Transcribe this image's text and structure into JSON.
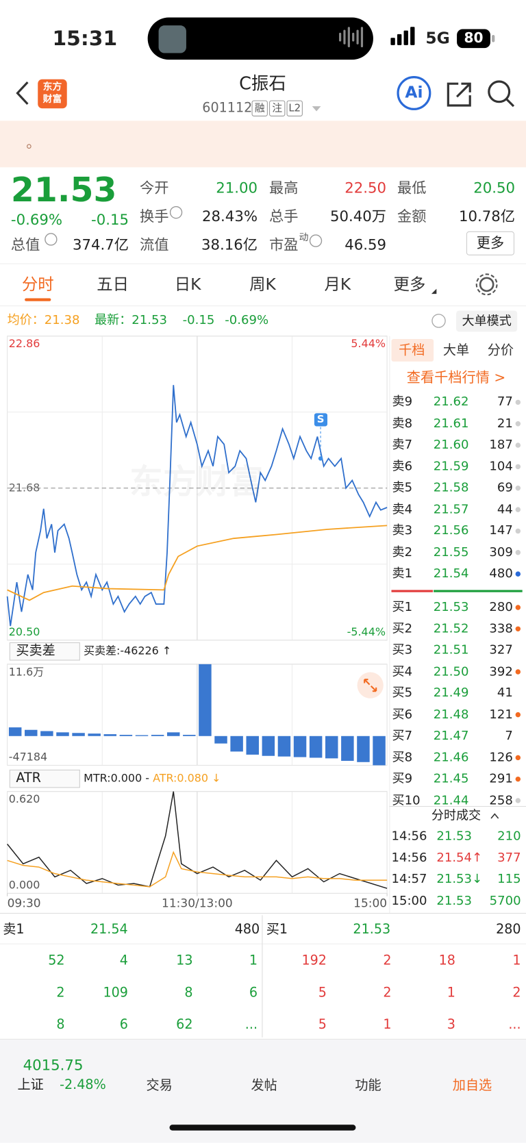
{
  "status_bar": {
    "time": "15:31",
    "network": "5G",
    "battery": "80"
  },
  "header": {
    "logo": [
      "东方",
      "财富"
    ],
    "title": "C振石",
    "code": "601112",
    "tags": [
      "融",
      "注",
      "L2"
    ],
    "ai": "Ai"
  },
  "banner": {
    "text": "。"
  },
  "quote": {
    "price": "21.53",
    "pct": "-0.69%",
    "chg": "-0.15",
    "cap_label": "总值",
    "cap": "374.7亿",
    "rows": [
      [
        {
          "label": "今开",
          "value": "21.00",
          "color": "#1a9e3a"
        },
        {
          "label": "最高",
          "value": "22.50",
          "color": "#e23b3b"
        },
        {
          "label": "最低",
          "value": "20.50",
          "color": "#1a9e3a"
        }
      ],
      [
        {
          "label": "换手",
          "value": "28.43%",
          "info": true
        },
        {
          "label": "总手",
          "value": "50.40万"
        },
        {
          "label": "金额",
          "value": "10.78亿"
        }
      ],
      [
        {
          "label": "流值",
          "value": "38.16亿"
        },
        {
          "label": "市盈",
          "sup": "动",
          "value": "46.59",
          "info": true
        }
      ]
    ],
    "more": "更多"
  },
  "tabs": {
    "items": [
      "分时",
      "五日",
      "日K",
      "周K",
      "月K",
      "更多"
    ],
    "active": 0
  },
  "info_bar": {
    "avg": "均价：21.38",
    "last": "最新：21.53",
    "chg": "-0.15",
    "pct": "-0.69%",
    "big_order": "大单模式"
  },
  "chart_data": [
    {
      "type": "line",
      "watermark": "东方财富",
      "xlim": [
        0,
        240
      ],
      "ylim": [
        20.5,
        22.86
      ],
      "yticks": [
        22.86,
        21.68,
        {
          "value": 20.5,
          "label": "20.50"
        }
      ],
      "y2lim": [
        -5.44,
        5.44
      ],
      "y2ticks": [
        {
          "value": 5.44,
          "label": "5.44%"
        },
        {
          "value": -5.44,
          "label": "-5.44%"
        }
      ],
      "series": [
        {
          "color": "#2f6fcc",
          "x": [
            0,
            2,
            6,
            9,
            13,
            16,
            18,
            21,
            23,
            25,
            28,
            30,
            32,
            36,
            39,
            41,
            44,
            47,
            50,
            53,
            56,
            60,
            63,
            67,
            70,
            74,
            77,
            81,
            84,
            87,
            91,
            94,
            99,
            101,
            103,
            105,
            107,
            109,
            113,
            116,
            120,
            123,
            127,
            130,
            133,
            137,
            140,
            144,
            147,
            151,
            155,
            157,
            160,
            163,
            167,
            170,
            174,
            178,
            181,
            185,
            189,
            192,
            196,
            200,
            203,
            207,
            211,
            214,
            218,
            222,
            225,
            229,
            233,
            236,
            240
          ],
          "values": [
            20.84,
            20.61,
            20.95,
            20.72,
            21.01,
            20.89,
            21.18,
            21.35,
            21.52,
            21.29,
            21.4,
            21.18,
            21.35,
            21.4,
            21.29,
            21.18,
            21.01,
            20.89,
            20.95,
            20.84,
            21.01,
            20.89,
            20.95,
            20.78,
            20.84,
            20.72,
            20.78,
            20.84,
            20.78,
            20.84,
            20.87,
            20.78,
            20.78,
            21.18,
            21.8,
            22.48,
            22.19,
            22.25,
            22.08,
            22.19,
            22.02,
            21.85,
            21.97,
            21.85,
            22.08,
            22.02,
            21.8,
            21.85,
            21.97,
            21.91,
            21.68,
            21.57,
            21.8,
            21.74,
            21.85,
            21.97,
            22.14,
            22.02,
            21.91,
            22.08,
            21.97,
            21.91,
            22.08,
            21.85,
            21.91,
            21.85,
            21.91,
            21.68,
            21.74,
            21.63,
            21.57,
            21.46,
            21.57,
            21.51,
            21.53
          ]
        },
        {
          "color": "#f5a020",
          "x": [
            0,
            14,
            23,
            41,
            64,
            99,
            102,
            108,
            120,
            143,
            170,
            202,
            240
          ],
          "values": [
            20.89,
            20.81,
            20.87,
            20.92,
            20.9,
            20.89,
            21.01,
            21.15,
            21.23,
            21.29,
            21.32,
            21.36,
            21.39
          ]
        }
      ],
      "annotations": [
        {
          "label": "S",
          "x": 198,
          "y": 21.91
        }
      ]
    },
    {
      "type": "bar",
      "selector": "买卖差",
      "label": "买卖差:-46226 ↑",
      "color": "#3a78d0",
      "xlim": [
        0,
        240
      ],
      "x": [
        0,
        10,
        20,
        30,
        40,
        50,
        60,
        70,
        80,
        90,
        100,
        110,
        120,
        130,
        140,
        150,
        160,
        170,
        180,
        190,
        200,
        210,
        220,
        230
      ],
      "values": [
        14000,
        10000,
        8000,
        6000,
        5000,
        4000,
        3000,
        2000,
        1500,
        2000,
        6000,
        2000,
        116000,
        -12000,
        -25000,
        -30000,
        -32000,
        -33000,
        -34000,
        -35000,
        -36000,
        -40000,
        -42000,
        -47184
      ],
      "ylim": [
        -47184,
        116000
      ],
      "yticks": [
        {
          "value": 116000,
          "label": "11.6万"
        },
        -47184
      ]
    },
    {
      "type": "line",
      "selector": "ATR",
      "mtr_label": "MTR:0.000 -",
      "atr_label": "ATR:0.080 ↓",
      "xlim": [
        0,
        240
      ],
      "xticks": [
        {
          "value": 0,
          "label": "09:30"
        },
        {
          "value": 120,
          "label": "11:30/13:00"
        },
        {
          "value": 240,
          "label": "15:00"
        }
      ],
      "ylim": [
        0,
        0.62
      ],
      "yticks": [
        {
          "value": 0.62,
          "label": "0.620"
        },
        {
          "value": 0,
          "label": "0.000"
        }
      ],
      "series": [
        {
          "color": "#222222",
          "x": [
            0,
            10,
            20,
            30,
            40,
            50,
            60,
            70,
            80,
            90,
            100,
            105,
            110,
            120,
            130,
            140,
            150,
            160,
            170,
            180,
            190,
            200,
            210,
            220,
            240
          ],
          "values": [
            0.3,
            0.18,
            0.22,
            0.1,
            0.14,
            0.06,
            0.09,
            0.05,
            0.06,
            0.04,
            0.35,
            0.62,
            0.18,
            0.12,
            0.16,
            0.1,
            0.14,
            0.08,
            0.2,
            0.1,
            0.15,
            0.07,
            0.12,
            0.09,
            0.03
          ]
        },
        {
          "color": "#f5a020",
          "x": [
            0,
            10,
            20,
            30,
            40,
            50,
            60,
            70,
            80,
            90,
            100,
            105,
            110,
            120,
            130,
            140,
            150,
            160,
            170,
            180,
            190,
            200,
            210,
            220,
            240
          ],
          "values": [
            0.2,
            0.17,
            0.16,
            0.12,
            0.1,
            0.08,
            0.07,
            0.06,
            0.05,
            0.04,
            0.1,
            0.25,
            0.15,
            0.13,
            0.12,
            0.11,
            0.1,
            0.1,
            0.1,
            0.09,
            0.1,
            0.09,
            0.09,
            0.08,
            0.08
          ]
        }
      ]
    }
  ],
  "order_book": {
    "tabs": [
      "千档",
      "大单",
      "分价"
    ],
    "active": 0,
    "link": "查看千档行情 >",
    "asks": [
      {
        "label": "卖9",
        "price": "21.62",
        "volume": "77",
        "dot": "#cfcfcf"
      },
      {
        "label": "卖8",
        "price": "21.61",
        "volume": "21",
        "dot": "#cfcfcf"
      },
      {
        "label": "卖7",
        "price": "21.60",
        "volume": "187",
        "dot": "#cfcfcf"
      },
      {
        "label": "卖6",
        "price": "21.59",
        "volume": "104",
        "dot": "#cfcfcf"
      },
      {
        "label": "卖5",
        "price": "21.58",
        "volume": "69",
        "dot": "#cfcfcf"
      },
      {
        "label": "卖4",
        "price": "21.57",
        "volume": "44",
        "dot": "#cfcfcf"
      },
      {
        "label": "卖3",
        "price": "21.56",
        "volume": "147",
        "dot": "#cfcfcf"
      },
      {
        "label": "卖2",
        "price": "21.55",
        "volume": "309",
        "dot": "#cfcfcf"
      },
      {
        "label": "卖1",
        "price": "21.54",
        "volume": "480",
        "dot": "#2a6ad8"
      }
    ],
    "bids": [
      {
        "label": "买1",
        "price": "21.53",
        "volume": "280",
        "dot": "#f26a21"
      },
      {
        "label": "买2",
        "price": "21.52",
        "volume": "338",
        "dot": "#f26a21"
      },
      {
        "label": "买3",
        "price": "21.51",
        "volume": "327",
        "dot": null
      },
      {
        "label": "买4",
        "price": "21.50",
        "volume": "392",
        "dot": "#f26a21"
      },
      {
        "label": "买5",
        "price": "21.49",
        "volume": "41",
        "dot": null
      },
      {
        "label": "买6",
        "price": "21.48",
        "volume": "121",
        "dot": "#f26a21"
      },
      {
        "label": "买7",
        "price": "21.47",
        "volume": "7",
        "dot": null
      },
      {
        "label": "买8",
        "price": "21.46",
        "volume": "126",
        "dot": "#f26a21"
      },
      {
        "label": "买9",
        "price": "21.45",
        "volume": "291",
        "dot": "#f26a21"
      },
      {
        "label": "买10",
        "price": "21.44",
        "volume": "258",
        "dot": "#cfcfcf"
      }
    ]
  },
  "trades": {
    "title": "分时成交",
    "rows": [
      {
        "time": "14:56",
        "price": "21.53",
        "volume": "210",
        "price_color": "#1a9e3a",
        "volume_color": "#1a9e3a"
      },
      {
        "time": "14:56",
        "price": "21.54↑",
        "volume": "377",
        "price_color": "#e23b3b",
        "volume_color": "#e23b3b"
      },
      {
        "time": "14:57",
        "price": "21.53↓",
        "volume": "115",
        "price_color": "#1a9e3a",
        "volume_color": "#1a9e3a"
      },
      {
        "time": "15:00",
        "price": "21.53",
        "volume": "5700",
        "price_color": "#1a9e3a",
        "volume_color": "#1a9e3a"
      }
    ]
  },
  "level1": {
    "ask": {
      "label": "卖1",
      "price": "21.54",
      "volume": "480",
      "queue": [
        [
          "52",
          "4",
          "13",
          "1"
        ],
        [
          "2",
          "109",
          "8",
          "6"
        ],
        [
          "8",
          "6",
          "62",
          "..."
        ]
      ]
    },
    "bid": {
      "label": "买1",
      "price": "21.53",
      "volume": "280",
      "queue": [
        [
          "192",
          "2",
          "18",
          "1"
        ],
        [
          "5",
          "2",
          "1",
          "2"
        ],
        [
          "5",
          "1",
          "3",
          "..."
        ]
      ]
    }
  },
  "bottom_nav": {
    "index_value": "4015.75",
    "index_name": "上证",
    "index_pct": "-2.48%",
    "items": [
      "交易",
      "发帖",
      "功能",
      "加自选"
    ]
  }
}
